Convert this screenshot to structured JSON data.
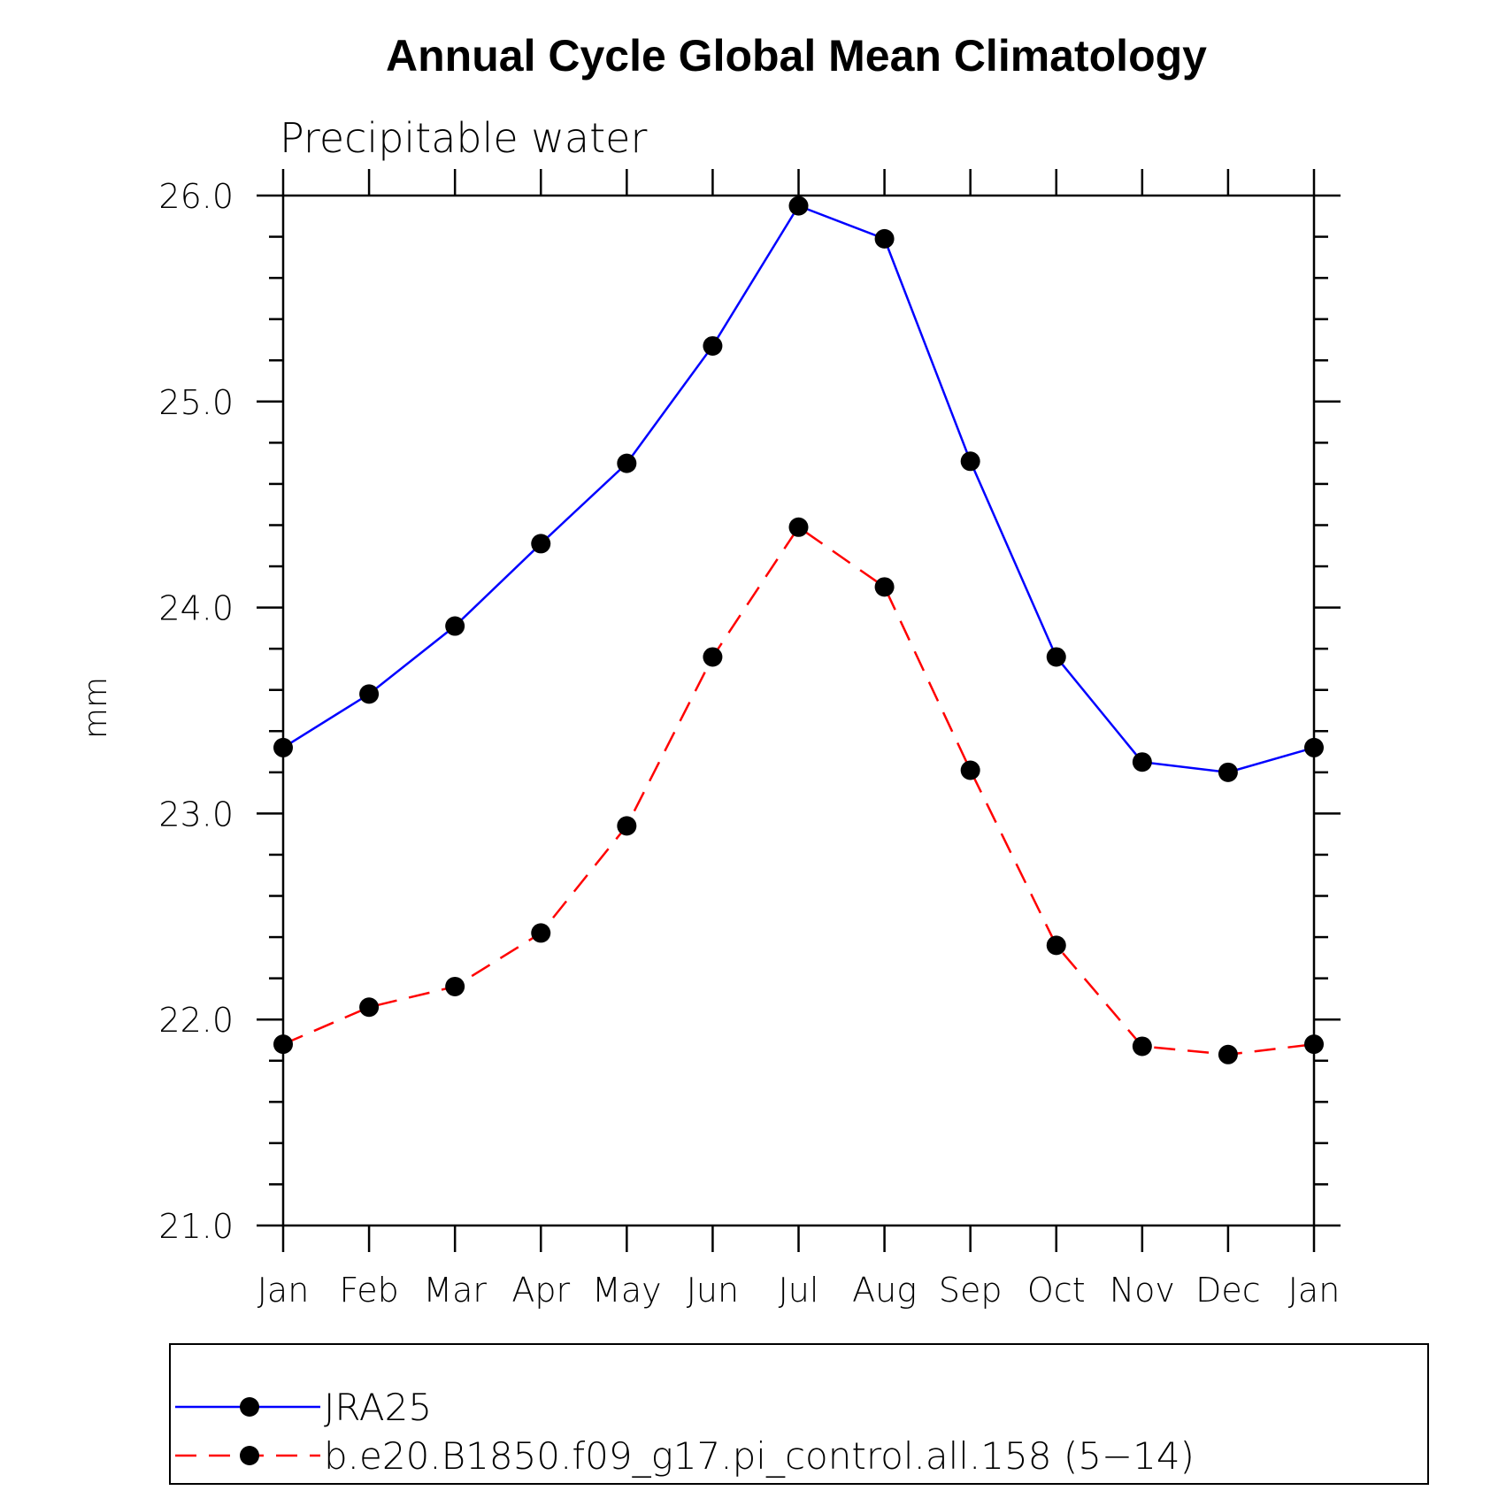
{
  "chart_data": {
    "type": "line",
    "title": "Annual Cycle Global Mean Climatology",
    "subtitle": "Precipitable water",
    "xlabel": "",
    "ylabel": "mm",
    "categories": [
      "Jan",
      "Feb",
      "Mar",
      "Apr",
      "May",
      "Jun",
      "Jul",
      "Aug",
      "Sep",
      "Oct",
      "Nov",
      "Dec",
      "Jan"
    ],
    "ylim": [
      21.0,
      26.0
    ],
    "yticks": [
      "21.0",
      "22.0",
      "23.0",
      "24.0",
      "25.0",
      "26.0"
    ],
    "grid": false,
    "legend_position": "bottom",
    "series": [
      {
        "name": "JRA25",
        "color": "#0000ff",
        "line_style": "solid",
        "marker": "circle",
        "values": [
          23.32,
          23.58,
          23.91,
          24.31,
          24.7,
          25.27,
          25.95,
          25.79,
          24.71,
          23.76,
          23.25,
          23.2,
          23.32
        ]
      },
      {
        "name": "b.e20.B1850.f09_g17.pi_control.all.158 (5−14)",
        "color": "#ff0000",
        "line_style": "dashed",
        "marker": "circle",
        "values": [
          21.88,
          22.06,
          22.16,
          22.42,
          22.94,
          23.76,
          24.39,
          24.1,
          23.21,
          22.36,
          21.87,
          21.83,
          21.88
        ]
      }
    ]
  }
}
